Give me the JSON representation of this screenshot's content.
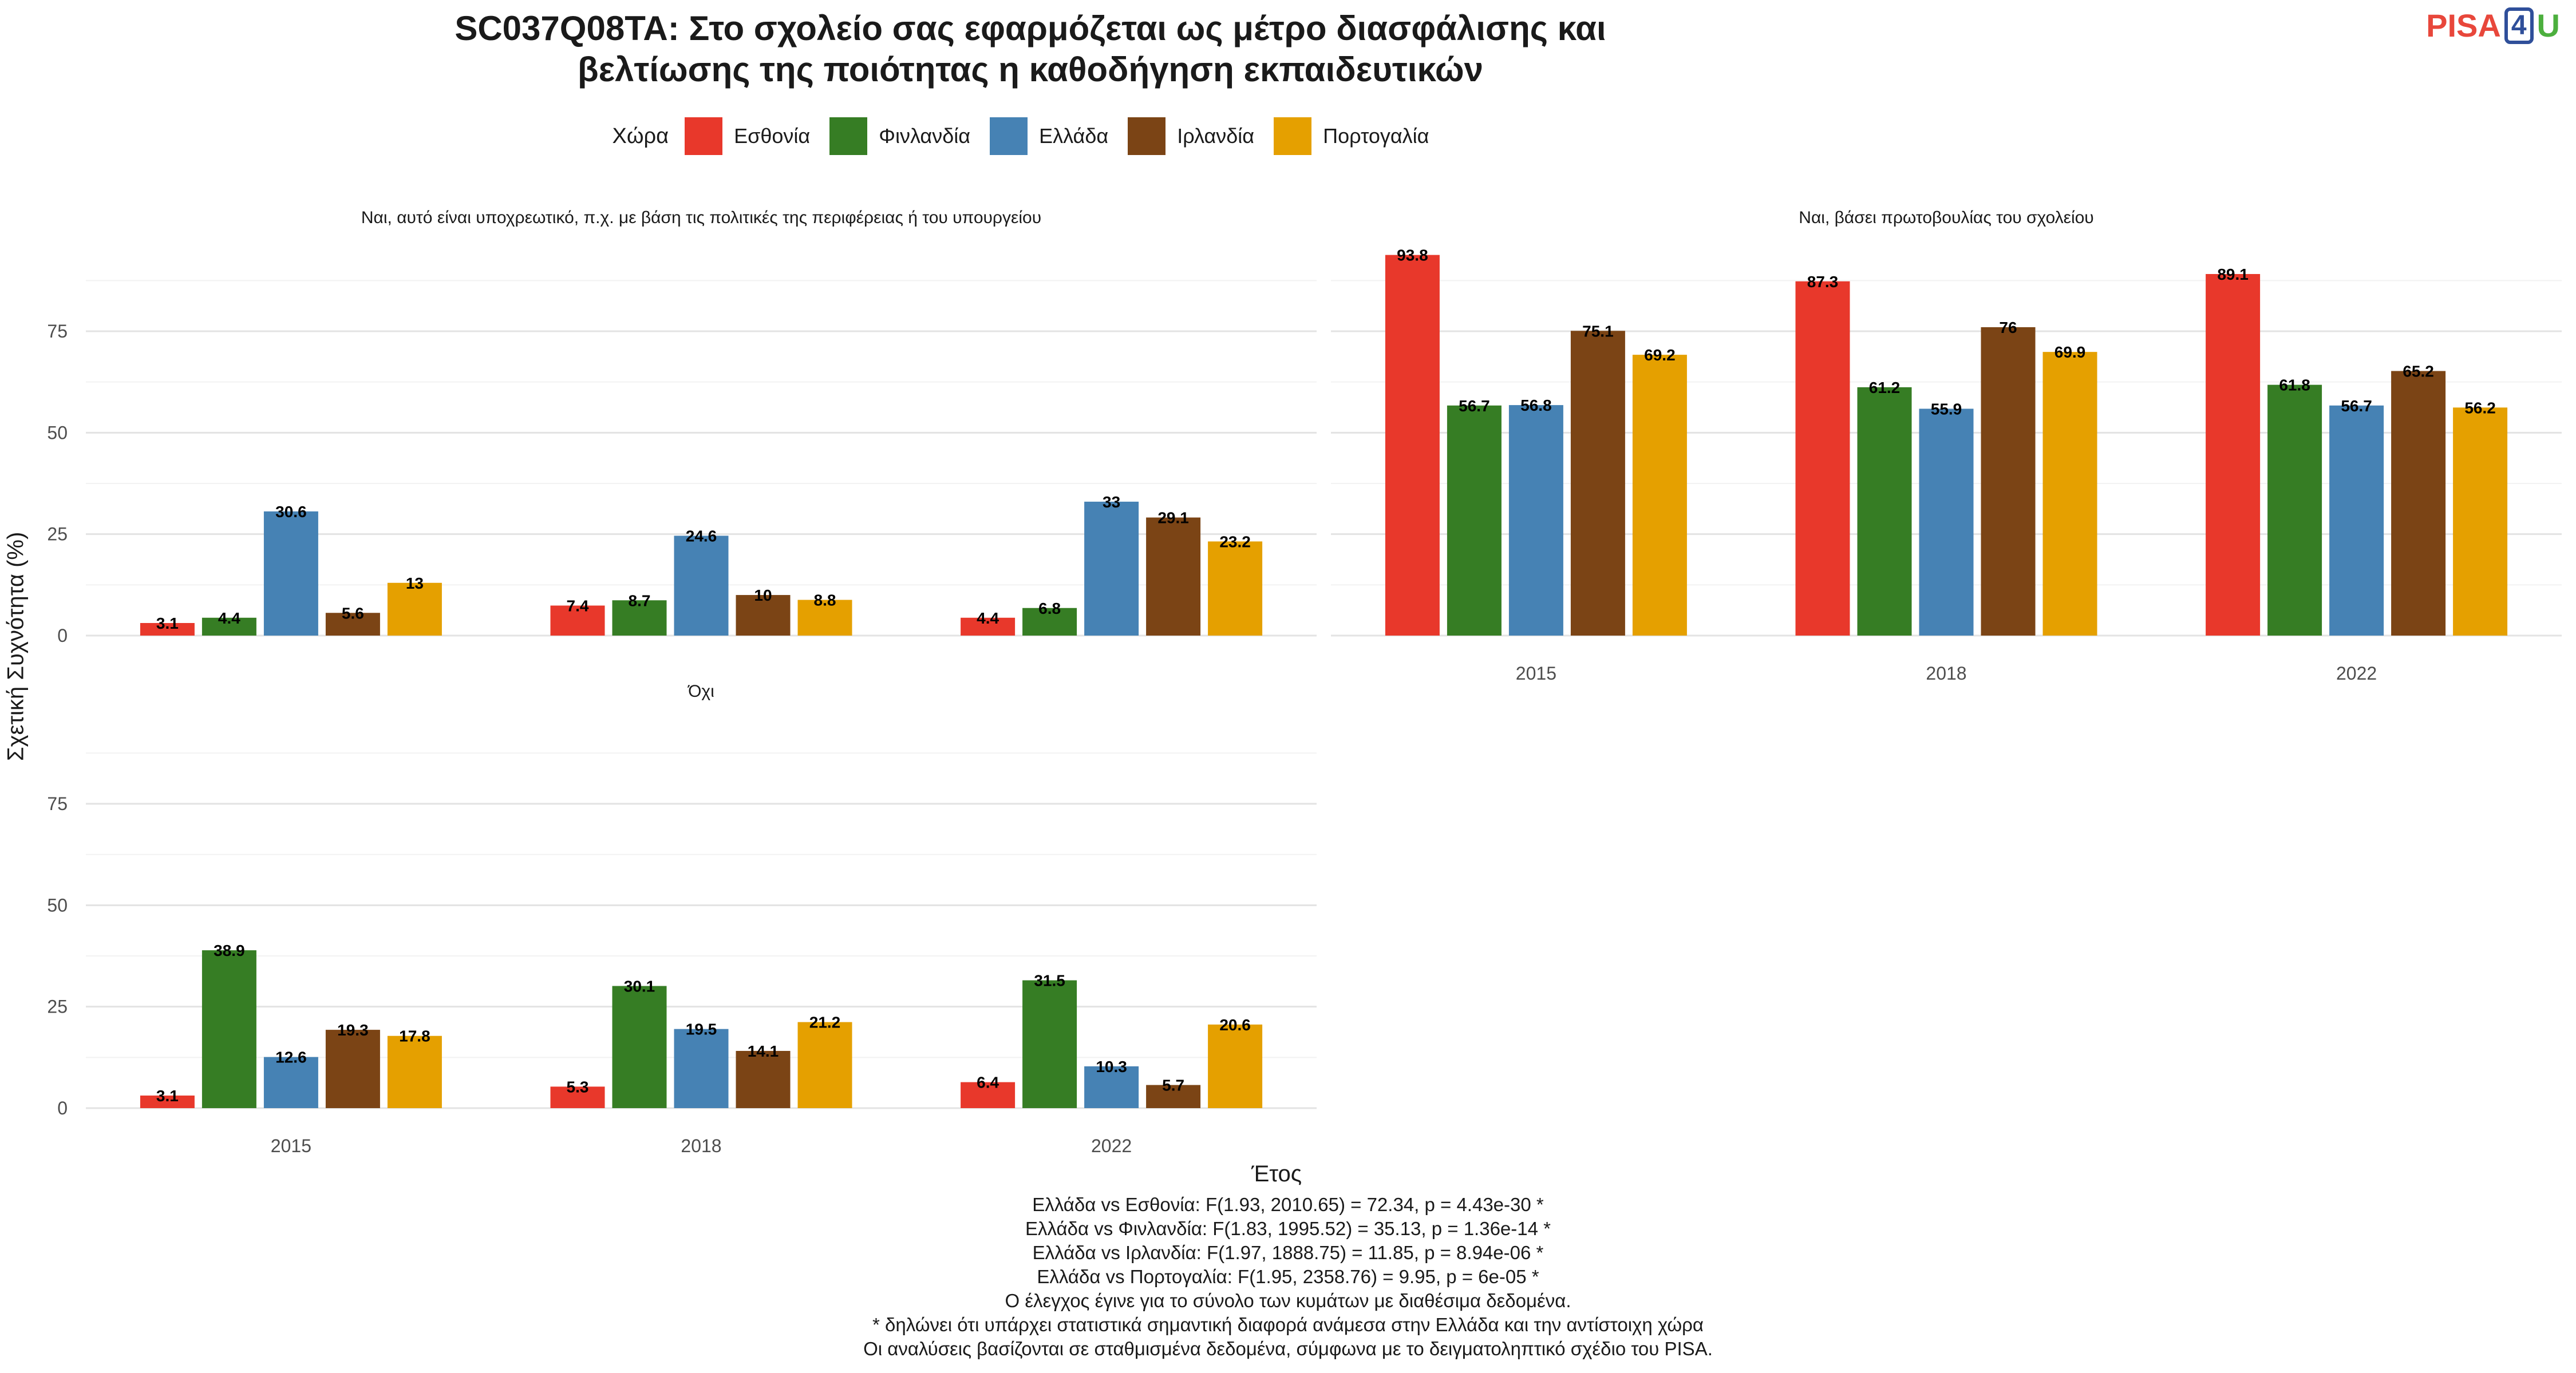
{
  "title_line1": "SC037Q08TA: Στο σχολείο σας εφαρμόζεται ως μέτρο διασφάλισης και",
  "title_line2": "βελτίωσης της ποιότητας η καθοδήγηση εκπαιδευτικών",
  "logo": {
    "pisa": "PISA",
    "four": "4",
    "u": "U"
  },
  "legend_title": "Χώρα",
  "ylabel": "Σχετική Συχνότητα (%)",
  "xlabel": "Έτος",
  "notes": [
    "Ελλάδα vs Εσθονία: F(1.93, 2010.65) = 72.34, p = 4.43e-30 *",
    "Ελλάδα vs Φινλανδία: F(1.83, 1995.52) = 35.13, p = 1.36e-14 *",
    "Ελλάδα vs Ιρλανδία: F(1.97, 1888.75) = 11.85, p = 8.94e-06 *",
    "Ελλάδα vs Πορτογαλία: F(1.95, 2358.76) = 9.95, p = 6e-05 *",
    "Ο έλεγχος έγινε για το σύνολο των κυμάτων με διαθέσιμα δεδομένα.",
    "* δηλώνει ότι υπάρχει στατιστικά σημαντική διαφορά ανάμεσα στην Ελλάδα και την αντίστοιχη χώρα",
    "Οι αναλύσεις βασίζονται σε σταθμισμένα δεδομένα, σύμφωνα με το δειγματοληπτικό σχέδιο του PISA."
  ],
  "chart_data": {
    "type": "bar",
    "categories": [
      "2015",
      "2018",
      "2022"
    ],
    "series_names": [
      "Εσθονία",
      "Φινλανδία",
      "Ελλάδα",
      "Ιρλανδία",
      "Πορτογαλία"
    ],
    "colors": [
      "#e8382b",
      "#367d24",
      "#4682b4",
      "#7b4415",
      "#e5a000"
    ],
    "ylim": [
      0,
      95
    ],
    "yticks": [
      0,
      25,
      50,
      75
    ],
    "panels": [
      {
        "title": "Ναι, αυτό είναι υποχρεωτικό, π.χ. με βάση τις πολιτικές της περιφέρειας ή του υπουργείου",
        "series": [
          {
            "name": "Εσθονία",
            "values": [
              3.1,
              7.4,
              4.4
            ]
          },
          {
            "name": "Φινλανδία",
            "values": [
              4.4,
              8.7,
              6.8
            ]
          },
          {
            "name": "Ελλάδα",
            "values": [
              30.6,
              24.6,
              33
            ]
          },
          {
            "name": "Ιρλανδία",
            "values": [
              5.6,
              10,
              29.1
            ]
          },
          {
            "name": "Πορτογαλία",
            "values": [
              13,
              8.8,
              23.2
            ]
          }
        ]
      },
      {
        "title": "Ναι, βάσει πρωτοβουλίας του σχολείου",
        "series": [
          {
            "name": "Εσθονία",
            "values": [
              93.8,
              87.3,
              89.1
            ]
          },
          {
            "name": "Φινλανδία",
            "values": [
              56.7,
              61.2,
              61.8
            ]
          },
          {
            "name": "Ελλάδα",
            "values": [
              56.8,
              55.9,
              56.7
            ]
          },
          {
            "name": "Ιρλανδία",
            "values": [
              75.1,
              76,
              65.2
            ]
          },
          {
            "name": "Πορτογαλία",
            "values": [
              69.2,
              69.9,
              56.2
            ]
          }
        ]
      },
      {
        "title": "Όχι",
        "series": [
          {
            "name": "Εσθονία",
            "values": [
              3.1,
              5.3,
              6.4
            ]
          },
          {
            "name": "Φινλανδία",
            "values": [
              38.9,
              30.1,
              31.5
            ]
          },
          {
            "name": "Ελλάδα",
            "values": [
              12.6,
              19.5,
              10.3
            ]
          },
          {
            "name": "Ιρλανδία",
            "values": [
              19.3,
              14.1,
              5.7
            ]
          },
          {
            "name": "Πορτογαλία",
            "values": [
              17.8,
              21.2,
              20.6
            ]
          }
        ]
      }
    ]
  }
}
